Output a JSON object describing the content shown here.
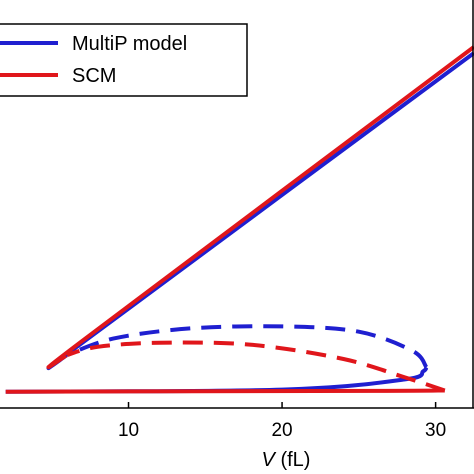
{
  "chart_data": {
    "type": "line",
    "title": "",
    "xlabel": {
      "symbol": "V",
      "unit": " (fL)"
    },
    "ylabel": "",
    "xlim": [
      1.5,
      32.5
    ],
    "ylim": [
      0,
      1
    ],
    "x_ticks": [
      10,
      20,
      30
    ],
    "grid": false,
    "legend": {
      "placement": "top-left",
      "entries": [
        {
          "name": "MultiP model",
          "color": "#1f1fd0"
        },
        {
          "name": "SCM",
          "color": "#e0161b"
        }
      ]
    },
    "series": [
      {
        "name": "MultiP model",
        "color": "#1f1fd0",
        "segments": [
          {
            "style": "solid",
            "x": [
              2,
              20,
              28,
              29.2,
              29.4
            ],
            "y": [
              0.04,
              0.045,
              0.07,
              0.09,
              0.1
            ]
          },
          {
            "style": "dashed",
            "x": [
              29.4,
              28.5,
              25,
              20,
              14,
              9,
              6
            ],
            "y": [
              0.1,
              0.14,
              0.187,
              0.2,
              0.195,
              0.17,
              0.13
            ]
          },
          {
            "style": "solid",
            "x": [
              6,
              7,
              32.5
            ],
            "y": [
              0.13,
              0.16,
              0.87
            ]
          }
        ]
      },
      {
        "name": "SCM",
        "color": "#e0161b",
        "segments": [
          {
            "style": "solid",
            "x": [
              2,
              26,
              30.6
            ],
            "y": [
              0.04,
              0.042,
              0.043
            ]
          },
          {
            "style": "dashed",
            "x": [
              30.6,
              28,
              24,
              18,
              12,
              8,
              6
            ],
            "y": [
              0.043,
              0.075,
              0.12,
              0.155,
              0.16,
              0.15,
              0.13
            ]
          },
          {
            "style": "solid",
            "x": [
              6,
              7,
              32.5
            ],
            "y": [
              0.13,
              0.165,
              0.885
            ]
          }
        ]
      }
    ]
  }
}
